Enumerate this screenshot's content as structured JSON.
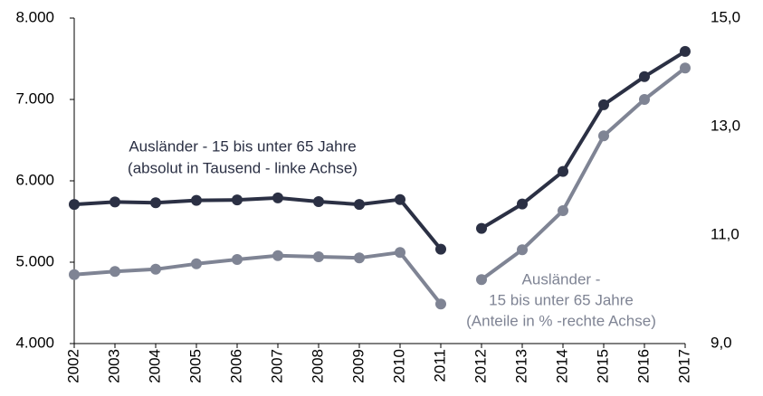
{
  "chart_data": {
    "type": "line",
    "categories": [
      "2002",
      "2003",
      "2004",
      "2005",
      "2006",
      "2007",
      "2008",
      "2009",
      "2010",
      "2011",
      "2012",
      "2013",
      "2014",
      "2015",
      "2016",
      "2017"
    ],
    "series": [
      {
        "name": "Ausländer - 15 bis unter 65 Jahre (absolut in Tausend - linke Achse)",
        "color": "#2b3044",
        "axis": "y",
        "values": [
          5710,
          5740,
          5730,
          5760,
          5765,
          5790,
          5745,
          5710,
          5770,
          5160,
          5415,
          5715,
          6115,
          6935,
          7280,
          7590
        ]
      },
      {
        "name": "Ausländer - 15 bis unter 65 Jahre (Anteile in % -rechte Achse)",
        "color": "#7f8494",
        "axis": "y2",
        "values": [
          10.27,
          10.33,
          10.37,
          10.47,
          10.55,
          10.62,
          10.6,
          10.58,
          10.68,
          9.73,
          10.18,
          10.73,
          11.45,
          12.83,
          13.5,
          14.08
        ]
      }
    ],
    "annotations": [
      [
        "Ausländer - 15 bis unter 65 Jahre",
        "(absolut in Tausend - linke Achse)"
      ],
      [
        "Ausländer -",
        "15 bis unter 65 Jahre",
        "(Anteile in % -rechte Achse)"
      ]
    ],
    "ylim": [
      4000,
      8000
    ],
    "yticks": [
      {
        "value": 4000,
        "label": "4.000"
      },
      {
        "value": 5000,
        "label": "5.000"
      },
      {
        "value": 6000,
        "label": "6.000"
      },
      {
        "value": 7000,
        "label": "7.000"
      },
      {
        "value": 8000,
        "label": "8.000"
      }
    ],
    "y2lim": [
      9,
      15
    ],
    "y2ticks": [
      {
        "value": 9,
        "label": "9,0"
      },
      {
        "value": 11,
        "label": "11,0"
      },
      {
        "value": 13,
        "label": "13,0"
      },
      {
        "value": 15,
        "label": "15,0"
      }
    ],
    "grid": false
  }
}
